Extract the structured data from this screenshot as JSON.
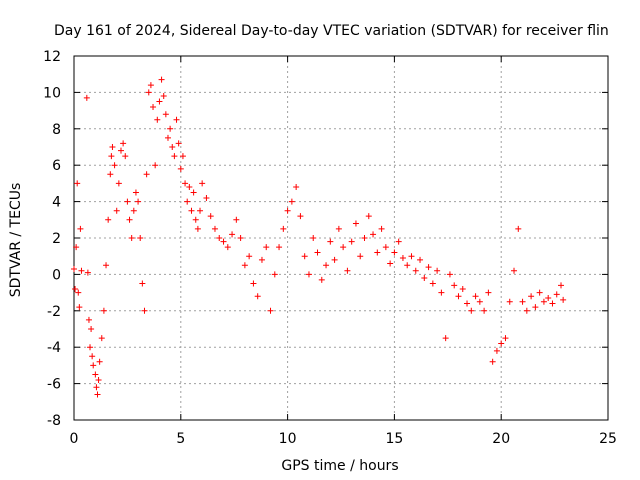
{
  "chart_data": {
    "type": "scatter",
    "title": "Day 161 of 2024, Sidereal Day-to-day VTEC variation (SDTVAR) for receiver flin",
    "xlabel": "GPS time / hours",
    "ylabel": "SDTVAR / TECUs",
    "xlim": [
      0,
      25
    ],
    "ylim": [
      -8,
      12
    ],
    "xticks": [
      "0",
      "5",
      "10",
      "15",
      "20",
      "25"
    ],
    "yticks": [
      "-8",
      "-6",
      "-4",
      "-2",
      "0",
      "2",
      "4",
      "6",
      "8",
      "10",
      "12"
    ],
    "grid": true,
    "marker": "+",
    "color": "#ff0000",
    "series": [
      {
        "name": "SDTVAR",
        "points": [
          [
            0.0,
            0.3
          ],
          [
            0.05,
            -0.8
          ],
          [
            0.1,
            1.5
          ],
          [
            0.15,
            5.0
          ],
          [
            0.2,
            -1.0
          ],
          [
            0.25,
            -1.8
          ],
          [
            0.3,
            2.5
          ],
          [
            0.35,
            0.2
          ],
          [
            0.6,
            9.7
          ],
          [
            0.65,
            0.1
          ],
          [
            0.7,
            -2.5
          ],
          [
            0.75,
            -4.0
          ],
          [
            0.8,
            -3.0
          ],
          [
            0.85,
            -4.5
          ],
          [
            0.9,
            -5.0
          ],
          [
            1.0,
            -5.5
          ],
          [
            1.05,
            -6.2
          ],
          [
            1.1,
            -6.6
          ],
          [
            1.15,
            -5.8
          ],
          [
            1.2,
            -4.8
          ],
          [
            1.3,
            -3.5
          ],
          [
            1.4,
            -2.0
          ],
          [
            1.5,
            0.5
          ],
          [
            1.6,
            3.0
          ],
          [
            1.7,
            5.5
          ],
          [
            1.75,
            6.5
          ],
          [
            1.8,
            7.0
          ],
          [
            1.9,
            6.0
          ],
          [
            2.0,
            3.5
          ],
          [
            2.1,
            5.0
          ],
          [
            2.2,
            6.8
          ],
          [
            2.3,
            7.2
          ],
          [
            2.4,
            6.5
          ],
          [
            2.5,
            4.0
          ],
          [
            2.6,
            3.0
          ],
          [
            2.7,
            2.0
          ],
          [
            2.8,
            3.5
          ],
          [
            2.9,
            4.5
          ],
          [
            3.0,
            4.0
          ],
          [
            3.1,
            2.0
          ],
          [
            3.2,
            -0.5
          ],
          [
            3.3,
            -2.0
          ],
          [
            3.4,
            5.5
          ],
          [
            3.5,
            10.0
          ],
          [
            3.6,
            10.4
          ],
          [
            3.7,
            9.2
          ],
          [
            3.8,
            6.0
          ],
          [
            3.9,
            8.5
          ],
          [
            4.0,
            9.5
          ],
          [
            4.1,
            10.7
          ],
          [
            4.2,
            9.8
          ],
          [
            4.3,
            8.8
          ],
          [
            4.4,
            7.5
          ],
          [
            4.5,
            8.0
          ],
          [
            4.6,
            7.0
          ],
          [
            4.7,
            6.5
          ],
          [
            4.8,
            8.5
          ],
          [
            4.9,
            7.2
          ],
          [
            5.0,
            5.8
          ],
          [
            5.1,
            6.5
          ],
          [
            5.2,
            5.0
          ],
          [
            5.3,
            4.0
          ],
          [
            5.4,
            4.8
          ],
          [
            5.5,
            3.5
          ],
          [
            5.6,
            4.5
          ],
          [
            5.7,
            3.0
          ],
          [
            5.8,
            2.5
          ],
          [
            5.9,
            3.5
          ],
          [
            6.0,
            5.0
          ],
          [
            6.2,
            4.2
          ],
          [
            6.4,
            3.2
          ],
          [
            6.6,
            2.5
          ],
          [
            6.8,
            2.0
          ],
          [
            7.0,
            1.8
          ],
          [
            7.2,
            1.5
          ],
          [
            7.4,
            2.2
          ],
          [
            7.6,
            3.0
          ],
          [
            7.8,
            2.0
          ],
          [
            8.0,
            0.5
          ],
          [
            8.2,
            1.0
          ],
          [
            8.4,
            -0.5
          ],
          [
            8.6,
            -1.2
          ],
          [
            8.8,
            0.8
          ],
          [
            9.0,
            1.5
          ],
          [
            9.2,
            -2.0
          ],
          [
            9.4,
            0.0
          ],
          [
            9.6,
            1.5
          ],
          [
            9.8,
            2.5
          ],
          [
            10.0,
            3.5
          ],
          [
            10.2,
            4.0
          ],
          [
            10.4,
            4.8
          ],
          [
            10.6,
            3.2
          ],
          [
            10.8,
            1.0
          ],
          [
            11.0,
            0.0
          ],
          [
            11.2,
            2.0
          ],
          [
            11.4,
            1.2
          ],
          [
            11.6,
            -0.3
          ],
          [
            11.8,
            0.5
          ],
          [
            12.0,
            1.8
          ],
          [
            12.2,
            0.8
          ],
          [
            12.4,
            2.5
          ],
          [
            12.6,
            1.5
          ],
          [
            12.8,
            0.2
          ],
          [
            13.0,
            1.8
          ],
          [
            13.2,
            2.8
          ],
          [
            13.4,
            1.0
          ],
          [
            13.6,
            2.0
          ],
          [
            13.8,
            3.2
          ],
          [
            14.0,
            2.2
          ],
          [
            14.2,
            1.2
          ],
          [
            14.4,
            2.5
          ],
          [
            14.6,
            1.5
          ],
          [
            14.8,
            0.6
          ],
          [
            15.0,
            1.2
          ],
          [
            15.2,
            1.8
          ],
          [
            15.4,
            0.9
          ],
          [
            15.6,
            0.5
          ],
          [
            15.8,
            1.0
          ],
          [
            16.0,
            0.2
          ],
          [
            16.2,
            0.8
          ],
          [
            16.4,
            -0.2
          ],
          [
            16.6,
            0.4
          ],
          [
            16.8,
            -0.5
          ],
          [
            17.0,
            0.2
          ],
          [
            17.2,
            -1.0
          ],
          [
            17.4,
            -3.5
          ],
          [
            17.6,
            0.0
          ],
          [
            17.8,
            -0.6
          ],
          [
            18.0,
            -1.2
          ],
          [
            18.2,
            -0.8
          ],
          [
            18.4,
            -1.6
          ],
          [
            18.6,
            -2.0
          ],
          [
            18.8,
            -1.2
          ],
          [
            19.0,
            -1.5
          ],
          [
            19.2,
            -2.0
          ],
          [
            19.4,
            -1.0
          ],
          [
            19.6,
            -4.8
          ],
          [
            19.8,
            -4.2
          ],
          [
            20.0,
            -3.8
          ],
          [
            20.2,
            -3.5
          ],
          [
            20.4,
            -1.5
          ],
          [
            20.6,
            0.2
          ],
          [
            20.8,
            2.5
          ],
          [
            21.0,
            -1.5
          ],
          [
            21.2,
            -2.0
          ],
          [
            21.4,
            -1.2
          ],
          [
            21.6,
            -1.8
          ],
          [
            21.8,
            -1.0
          ],
          [
            22.0,
            -1.5
          ],
          [
            22.2,
            -1.3
          ],
          [
            22.4,
            -1.6
          ],
          [
            22.6,
            -1.1
          ],
          [
            22.8,
            -0.6
          ],
          [
            22.9,
            -1.4
          ]
        ]
      }
    ]
  }
}
